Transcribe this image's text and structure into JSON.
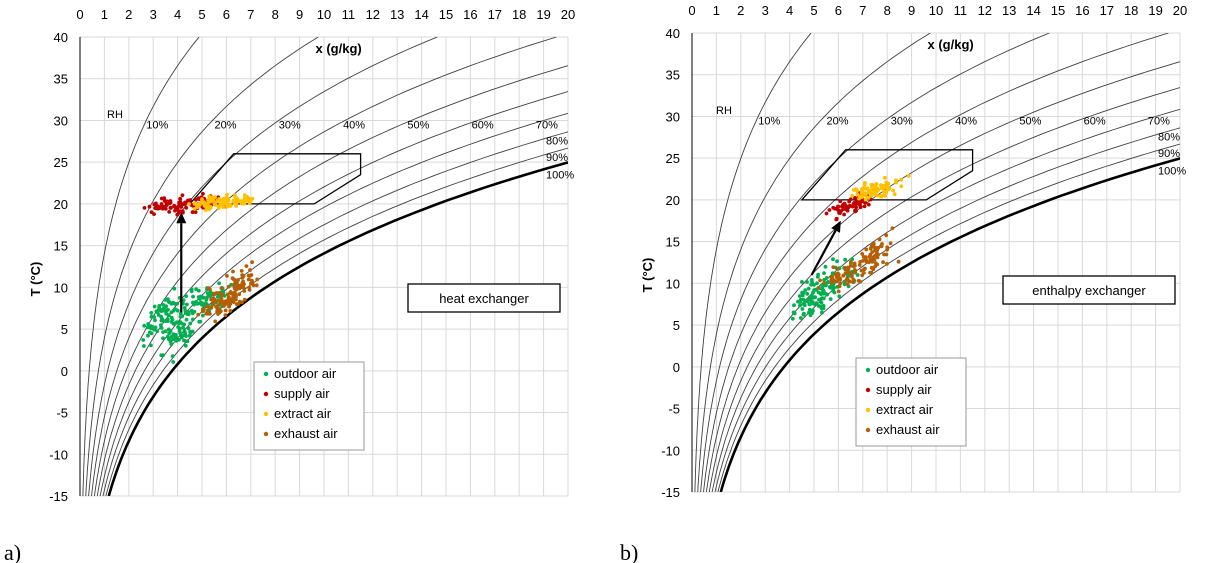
{
  "chart_data": [
    {
      "type": "scatter",
      "panel_label": "a)",
      "xlabel": "x (g/kg)",
      "ylabel": "T (°C)",
      "xlim": [
        0,
        20
      ],
      "ylim": [
        -15,
        40
      ],
      "x_ticks": [
        "0",
        "1",
        "2",
        "3",
        "4",
        "5",
        "6",
        "7",
        "8",
        "9",
        "10",
        "11",
        "12",
        "13",
        "14",
        "15",
        "16",
        "17",
        "18",
        "19",
        "20"
      ],
      "y_ticks": [
        "-15",
        "-10",
        "-5",
        "0",
        "5",
        "10",
        "15",
        "20",
        "25",
        "30",
        "35",
        "40"
      ],
      "grid": true,
      "rh_label": "RH",
      "rh_curves": [
        {
          "rh": 0.1,
          "label": "10%"
        },
        {
          "rh": 0.2,
          "label": "20%"
        },
        {
          "rh": 0.3,
          "label": "30%"
        },
        {
          "rh": 0.4,
          "label": "40%"
        },
        {
          "rh": 0.5,
          "label": "50%"
        },
        {
          "rh": 0.6,
          "label": "60%"
        },
        {
          "rh": 0.7,
          "label": "70%"
        },
        {
          "rh": 0.8,
          "label": "80%"
        },
        {
          "rh": 0.9,
          "label": "90%"
        },
        {
          "rh": 1.0,
          "label": "100%"
        }
      ],
      "comfort_zone": [
        [
          4.5,
          20
        ],
        [
          6.3,
          26
        ],
        [
          11.5,
          26
        ],
        [
          11.5,
          23.5
        ],
        [
          9.6,
          20
        ]
      ],
      "annotation": "heat exchanger",
      "arrow": {
        "from": [
          4.15,
          7
        ],
        "to": [
          4.15,
          19
        ]
      },
      "series": [
        {
          "name": "outdoor air",
          "color": "#00b050",
          "clusters": [
            [
              3.4,
              6.5,
              0.35,
              1.4,
              70
            ],
            [
              4.1,
              5.0,
              0.35,
              1.4,
              70
            ],
            [
              5.3,
              8.6,
              0.45,
              1.1,
              70
            ]
          ],
          "seed": 11
        },
        {
          "name": "supply air",
          "color": "#c00000",
          "clusters": [
            [
              3.6,
              20.0,
              0.3,
              0.45,
              45
            ],
            [
              4.6,
              19.7,
              0.45,
              0.6,
              50
            ]
          ],
          "seed": 23
        },
        {
          "name": "extract air",
          "color": "#ffc000",
          "clusters": [
            [
              5.6,
              20.2,
              0.45,
              0.4,
              70
            ],
            [
              6.6,
              20.3,
              0.3,
              0.3,
              30
            ]
          ],
          "seed": 37
        },
        {
          "name": "exhaust air",
          "color": "#b45f06",
          "clusters": [
            [
              5.9,
              8.5,
              0.35,
              1.1,
              80
            ],
            [
              6.6,
              10.4,
              0.3,
              1.0,
              50
            ]
          ],
          "seed": 41
        }
      ]
    },
    {
      "type": "scatter",
      "panel_label": "b)",
      "xlabel": "x (g/kg)",
      "ylabel": "T (°C)",
      "xlim": [
        0,
        20
      ],
      "ylim": [
        -15,
        40
      ],
      "x_ticks": [
        "0",
        "1",
        "2",
        "3",
        "4",
        "5",
        "6",
        "7",
        "8",
        "9",
        "10",
        "11",
        "12",
        "13",
        "14",
        "15",
        "16",
        "17",
        "18",
        "19",
        "20"
      ],
      "y_ticks": [
        "-15",
        "-10",
        "-5",
        "0",
        "5",
        "10",
        "15",
        "20",
        "25",
        "30",
        "35",
        "40"
      ],
      "grid": true,
      "rh_label": "RH",
      "rh_curves": [
        {
          "rh": 0.1,
          "label": "10%"
        },
        {
          "rh": 0.2,
          "label": "20%"
        },
        {
          "rh": 0.3,
          "label": "30%"
        },
        {
          "rh": 0.4,
          "label": "40%"
        },
        {
          "rh": 0.5,
          "label": "50%"
        },
        {
          "rh": 0.6,
          "label": "60%"
        },
        {
          "rh": 0.7,
          "label": "70%"
        },
        {
          "rh": 0.8,
          "label": "80%"
        },
        {
          "rh": 0.9,
          "label": "90%"
        },
        {
          "rh": 1.0,
          "label": "100%"
        }
      ],
      "comfort_zone": [
        [
          4.5,
          20
        ],
        [
          6.3,
          26
        ],
        [
          11.5,
          26
        ],
        [
          11.5,
          23.5
        ],
        [
          9.6,
          20
        ]
      ],
      "annotation": "enthalpy exchanger",
      "arrow": {
        "from": [
          4.9,
          11
        ],
        "to": [
          6.1,
          17.5
        ]
      },
      "series": [
        {
          "name": "outdoor air",
          "color": "#00b050",
          "clusters": [
            [
              4.9,
              8.0,
              0.35,
              1.4,
              80
            ],
            [
              5.8,
              10.3,
              0.4,
              1.3,
              60
            ]
          ],
          "seed": 51
        },
        {
          "name": "supply air",
          "color": "#c00000",
          "clusters": [
            [
              6.3,
              18.9,
              0.35,
              0.6,
              40
            ],
            [
              6.9,
              20.0,
              0.3,
              0.5,
              30
            ]
          ],
          "seed": 63
        },
        {
          "name": "extract air",
          "color": "#ffc000",
          "clusters": [
            [
              7.5,
              21.2,
              0.45,
              0.7,
              80
            ]
          ],
          "seed": 77
        },
        {
          "name": "exhaust air",
          "color": "#b45f06",
          "clusters": [
            [
              6.4,
              11.2,
              0.45,
              1.0,
              60
            ],
            [
              7.6,
              13.6,
              0.35,
              1.1,
              50
            ]
          ],
          "seed": 89
        }
      ]
    }
  ]
}
